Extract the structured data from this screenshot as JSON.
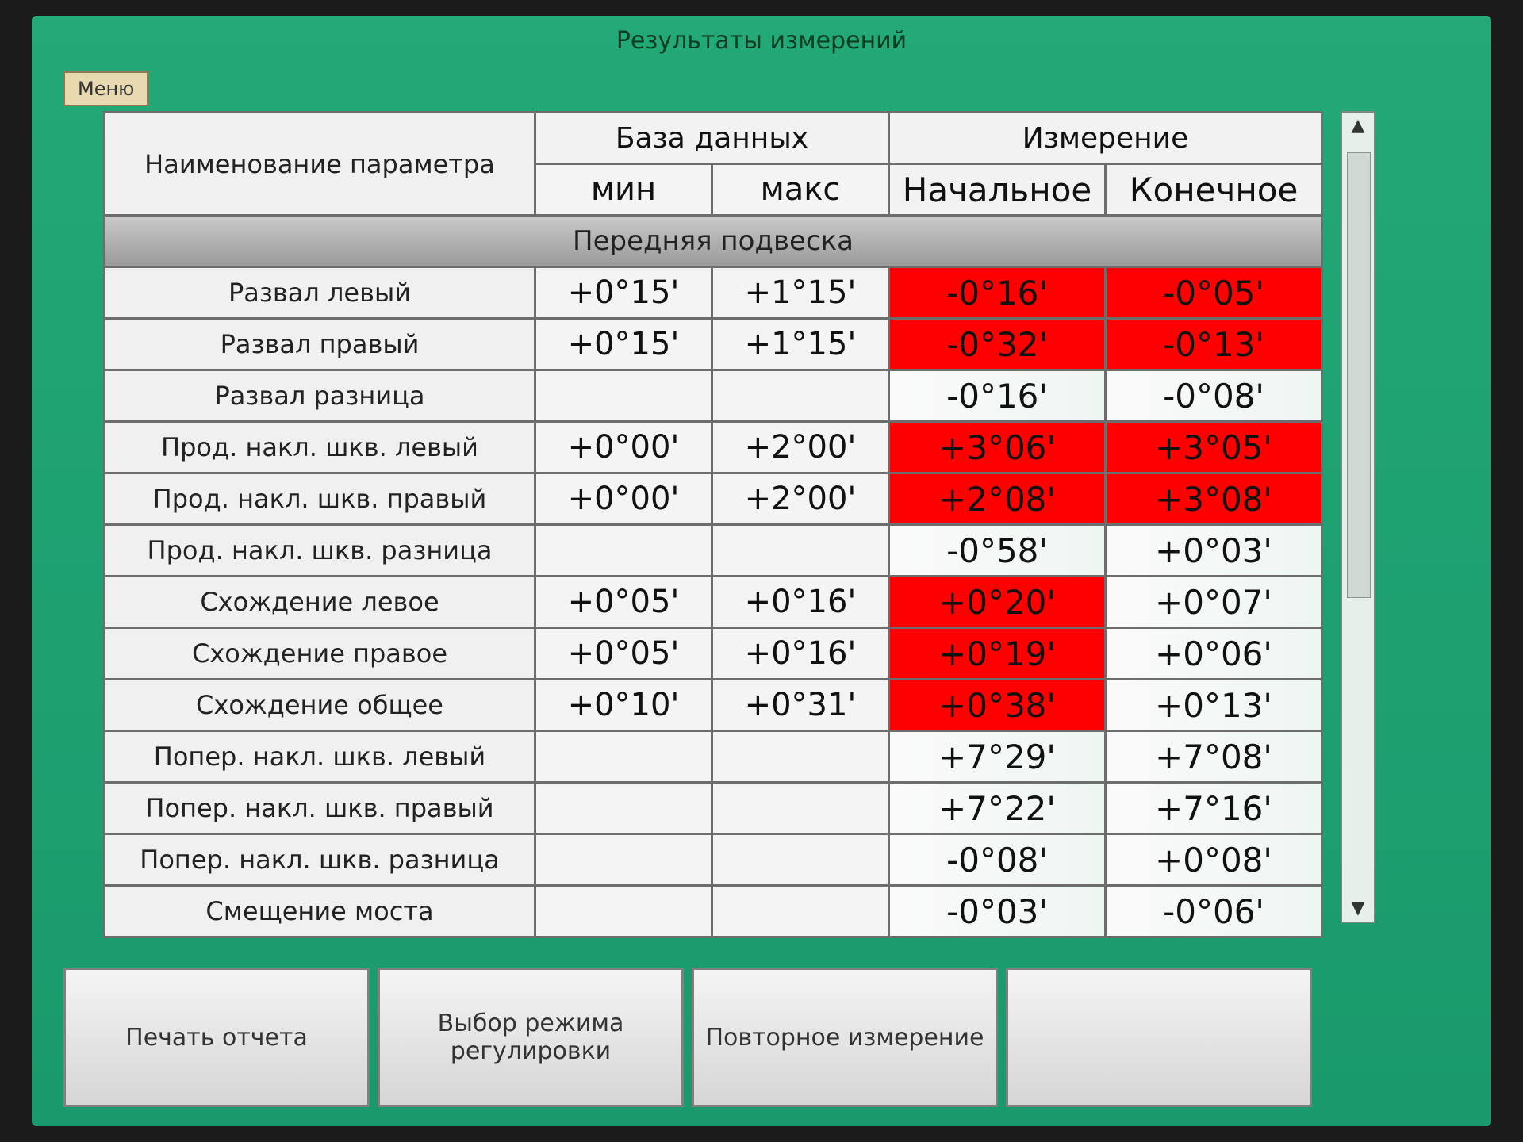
{
  "window": {
    "title": "Результаты измерений",
    "menu": "Меню"
  },
  "table": {
    "headers": {
      "name": "Наименование параметра",
      "database": "База данных",
      "min": "мин",
      "max": "макс",
      "measurement": "Измерение",
      "start": "Начальное",
      "end": "Конечное"
    },
    "section": "Передняя подвеска",
    "rows": [
      {
        "name": "Развал левый",
        "min": "+0°15'",
        "max": "+1°15'",
        "start": {
          "value": "-0°16'",
          "alarm": true
        },
        "end": {
          "value": "-0°05'",
          "alarm": true
        }
      },
      {
        "name": "Развал правый",
        "min": "+0°15'",
        "max": "+1°15'",
        "start": {
          "value": "-0°32'",
          "alarm": true
        },
        "end": {
          "value": "-0°13'",
          "alarm": true
        }
      },
      {
        "name": "Развал разница",
        "min": null,
        "max": null,
        "start": {
          "value": "-0°16'",
          "alarm": false
        },
        "end": {
          "value": "-0°08'",
          "alarm": false
        }
      },
      {
        "name": "Прод. накл. шкв. левый",
        "min": "+0°00'",
        "max": "+2°00'",
        "start": {
          "value": "+3°06'",
          "alarm": true
        },
        "end": {
          "value": "+3°05'",
          "alarm": true
        }
      },
      {
        "name": "Прод. накл. шкв. правый",
        "min": "+0°00'",
        "max": "+2°00'",
        "start": {
          "value": "+2°08'",
          "alarm": true
        },
        "end": {
          "value": "+3°08'",
          "alarm": true
        }
      },
      {
        "name": "Прод. накл. шкв. разница",
        "min": null,
        "max": null,
        "start": {
          "value": "-0°58'",
          "alarm": false
        },
        "end": {
          "value": "+0°03'",
          "alarm": false
        }
      },
      {
        "name": "Схождение левое",
        "min": "+0°05'",
        "max": "+0°16'",
        "start": {
          "value": "+0°20'",
          "alarm": true
        },
        "end": {
          "value": "+0°07'",
          "alarm": false
        }
      },
      {
        "name": "Схождение правое",
        "min": "+0°05'",
        "max": "+0°16'",
        "start": {
          "value": "+0°19'",
          "alarm": true
        },
        "end": {
          "value": "+0°06'",
          "alarm": false
        }
      },
      {
        "name": "Схождение общее",
        "min": "+0°10'",
        "max": "+0°31'",
        "start": {
          "value": "+0°38'",
          "alarm": true
        },
        "end": {
          "value": "+0°13'",
          "alarm": false
        }
      },
      {
        "name": "Попер. накл. шкв. левый",
        "min": null,
        "max": null,
        "start": {
          "value": "+7°29'",
          "alarm": false
        },
        "end": {
          "value": "+7°08'",
          "alarm": false
        }
      },
      {
        "name": "Попер. накл. шкв. правый",
        "min": null,
        "max": null,
        "start": {
          "value": "+7°22'",
          "alarm": false
        },
        "end": {
          "value": "+7°16'",
          "alarm": false
        }
      },
      {
        "name": "Попер. накл. шкв. разница",
        "min": null,
        "max": null,
        "start": {
          "value": "-0°08'",
          "alarm": false
        },
        "end": {
          "value": "+0°08'",
          "alarm": false
        }
      },
      {
        "name": "Смещение моста",
        "min": null,
        "max": null,
        "start": {
          "value": "-0°03'",
          "alarm": false
        },
        "end": {
          "value": "-0°06'",
          "alarm": false
        }
      }
    ]
  },
  "buttons": [
    "Печать отчета",
    "Выбор режима регулировки",
    "Повторное измерение"
  ]
}
